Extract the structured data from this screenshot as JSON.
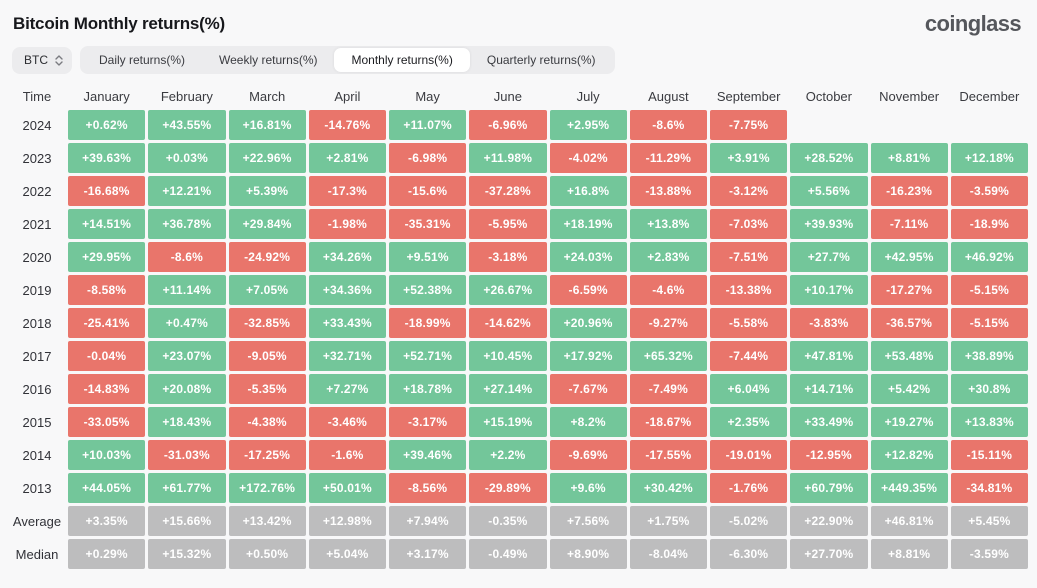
{
  "page": {
    "title": "Bitcoin Monthly returns(%)",
    "brand": "coinglass"
  },
  "toolbar": {
    "symbol_select": {
      "value": "BTC",
      "icon": "updown-chevron-icon"
    },
    "tabs": [
      {
        "label": "Daily returns(%)",
        "active": false
      },
      {
        "label": "Weekly returns(%)",
        "active": false
      },
      {
        "label": "Monthly returns(%)",
        "active": true
      },
      {
        "label": "Quarterly returns(%)",
        "active": false
      }
    ]
  },
  "table": {
    "columns": [
      "Time",
      "January",
      "February",
      "March",
      "April",
      "May",
      "June",
      "July",
      "August",
      "September",
      "October",
      "November",
      "December"
    ],
    "rows": [
      {
        "label": "2024",
        "type": "year",
        "values": [
          "+0.62%",
          "+43.55%",
          "+16.81%",
          "-14.76%",
          "+11.07%",
          "-6.96%",
          "+2.95%",
          "-8.6%",
          "-7.75%",
          null,
          null,
          null
        ]
      },
      {
        "label": "2023",
        "type": "year",
        "values": [
          "+39.63%",
          "+0.03%",
          "+22.96%",
          "+2.81%",
          "-6.98%",
          "+11.98%",
          "-4.02%",
          "-11.29%",
          "+3.91%",
          "+28.52%",
          "+8.81%",
          "+12.18%"
        ]
      },
      {
        "label": "2022",
        "type": "year",
        "values": [
          "-16.68%",
          "+12.21%",
          "+5.39%",
          "-17.3%",
          "-15.6%",
          "-37.28%",
          "+16.8%",
          "-13.88%",
          "-3.12%",
          "+5.56%",
          "-16.23%",
          "-3.59%"
        ]
      },
      {
        "label": "2021",
        "type": "year",
        "values": [
          "+14.51%",
          "+36.78%",
          "+29.84%",
          "-1.98%",
          "-35.31%",
          "-5.95%",
          "+18.19%",
          "+13.8%",
          "-7.03%",
          "+39.93%",
          "-7.11%",
          "-18.9%"
        ]
      },
      {
        "label": "2020",
        "type": "year",
        "values": [
          "+29.95%",
          "-8.6%",
          "-24.92%",
          "+34.26%",
          "+9.51%",
          "-3.18%",
          "+24.03%",
          "+2.83%",
          "-7.51%",
          "+27.7%",
          "+42.95%",
          "+46.92%"
        ]
      },
      {
        "label": "2019",
        "type": "year",
        "values": [
          "-8.58%",
          "+11.14%",
          "+7.05%",
          "+34.36%",
          "+52.38%",
          "+26.67%",
          "-6.59%",
          "-4.6%",
          "-13.38%",
          "+10.17%",
          "-17.27%",
          "-5.15%"
        ]
      },
      {
        "label": "2018",
        "type": "year",
        "values": [
          "-25.41%",
          "+0.47%",
          "-32.85%",
          "+33.43%",
          "-18.99%",
          "-14.62%",
          "+20.96%",
          "-9.27%",
          "-5.58%",
          "-3.83%",
          "-36.57%",
          "-5.15%"
        ]
      },
      {
        "label": "2017",
        "type": "year",
        "values": [
          "-0.04%",
          "+23.07%",
          "-9.05%",
          "+32.71%",
          "+52.71%",
          "+10.45%",
          "+17.92%",
          "+65.32%",
          "-7.44%",
          "+47.81%",
          "+53.48%",
          "+38.89%"
        ]
      },
      {
        "label": "2016",
        "type": "year",
        "values": [
          "-14.83%",
          "+20.08%",
          "-5.35%",
          "+7.27%",
          "+18.78%",
          "+27.14%",
          "-7.67%",
          "-7.49%",
          "+6.04%",
          "+14.71%",
          "+5.42%",
          "+30.8%"
        ]
      },
      {
        "label": "2015",
        "type": "year",
        "values": [
          "-33.05%",
          "+18.43%",
          "-4.38%",
          "-3.46%",
          "-3.17%",
          "+15.19%",
          "+8.2%",
          "-18.67%",
          "+2.35%",
          "+33.49%",
          "+19.27%",
          "+13.83%"
        ]
      },
      {
        "label": "2014",
        "type": "year",
        "values": [
          "+10.03%",
          "-31.03%",
          "-17.25%",
          "-1.6%",
          "+39.46%",
          "+2.2%",
          "-9.69%",
          "-17.55%",
          "-19.01%",
          "-12.95%",
          "+12.82%",
          "-15.11%"
        ]
      },
      {
        "label": "2013",
        "type": "year",
        "values": [
          "+44.05%",
          "+61.77%",
          "+172.76%",
          "+50.01%",
          "-8.56%",
          "-29.89%",
          "+9.6%",
          "+30.42%",
          "-1.76%",
          "+60.79%",
          "+449.35%",
          "-34.81%"
        ]
      },
      {
        "label": "Average",
        "type": "stat",
        "values": [
          "+3.35%",
          "+15.66%",
          "+13.42%",
          "+12.98%",
          "+7.94%",
          "-0.35%",
          "+7.56%",
          "+1.75%",
          "-5.02%",
          "+22.90%",
          "+46.81%",
          "+5.45%"
        ]
      },
      {
        "label": "Median",
        "type": "stat",
        "values": [
          "+0.29%",
          "+15.32%",
          "+0.50%",
          "+5.04%",
          "+3.17%",
          "-0.49%",
          "+8.90%",
          "-8.04%",
          "-6.30%",
          "+27.70%",
          "+8.81%",
          "-3.59%"
        ]
      }
    ]
  },
  "colors": {
    "positive": "#73c69a",
    "negative": "#e9756b",
    "neutral": "#bdbdbe",
    "page_bg": "#f8f8f9",
    "tabs_bg": "#ececee",
    "active_tab_bg": "#ffffff"
  }
}
